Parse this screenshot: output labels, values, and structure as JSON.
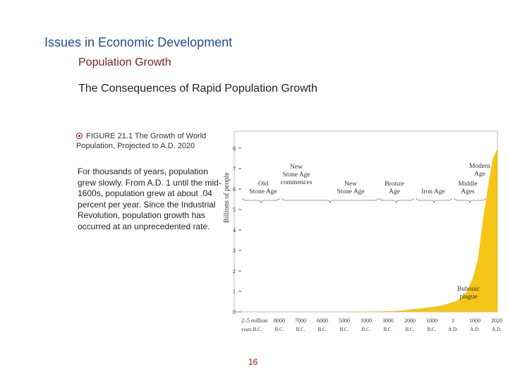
{
  "slide": {
    "title": "Issues in Economic Development",
    "subtitle": "Population Growth",
    "heading": "The Consequences of Rapid Population Growth",
    "caption": "FIGURE 21.1 The Growth of World Population, Projected to A.D. 2020",
    "body": "For thousands of years, population grew slowly.  From A.D. 1 until the mid-1600s, population grew at about .04 percent per year. Since the Industrial Revolution, population growth has occurred at an unprecedented rate.",
    "page_number": "16"
  },
  "chart_data": {
    "type": "area",
    "ylabel": "Billions of people",
    "xlabel": "",
    "ylim": [
      0,
      8
    ],
    "yticks": [
      "0",
      "1",
      "2",
      "3",
      "4",
      "5",
      "6",
      "7",
      "8"
    ],
    "xticks": [
      {
        "top": "2–5 million",
        "bottom": "years B.C."
      },
      {
        "top": "8000",
        "bottom": "B.C."
      },
      {
        "top": "7000",
        "bottom": "B.C."
      },
      {
        "top": "6000",
        "bottom": "B.C."
      },
      {
        "top": "5000",
        "bottom": "B.C."
      },
      {
        "top": "1000",
        "bottom": "B.C."
      },
      {
        "top": "3000",
        "bottom": "B.C."
      },
      {
        "top": "2000",
        "bottom": "B.C."
      },
      {
        "top": "1000",
        "bottom": "B.C."
      },
      {
        "top": "1",
        "bottom": "A.D."
      },
      {
        "top": "1000",
        "bottom": "A.D."
      },
      {
        "top": "2020",
        "bottom": "A.D."
      }
    ],
    "eras": [
      {
        "label": "Old Stone Age"
      },
      {
        "label": "New Stone Age commences"
      },
      {
        "label": "New Stone Age"
      },
      {
        "label": "Bronze Age"
      },
      {
        "label": "Iron Age"
      },
      {
        "label": "Middle Ages"
      },
      {
        "label": "Modern Age"
      }
    ],
    "annotations": [
      {
        "text": "Bubonic plague"
      }
    ],
    "series": [
      {
        "values": [
          0.004,
          0.005,
          0.01,
          0.02,
          0.03,
          0.05,
          0.1,
          0.15,
          0.2,
          0.25,
          0.3,
          0.4,
          0.5,
          0.65,
          1.0,
          1.6,
          2.5,
          4.5,
          6.1,
          7.5,
          8.0
        ]
      }
    ],
    "colors": {
      "area": "#f5c518",
      "text": "#333333"
    }
  }
}
